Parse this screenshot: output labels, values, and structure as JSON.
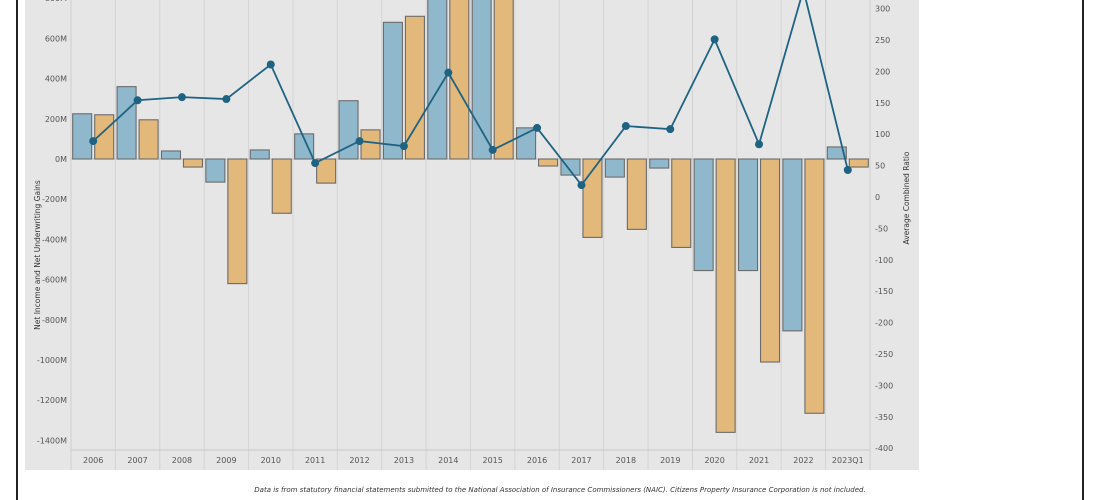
{
  "chart_data": {
    "type": "bar+line",
    "title": "",
    "categories": [
      "2006",
      "2007",
      "2008",
      "2009",
      "2010",
      "2011",
      "2012",
      "2013",
      "2014",
      "2015",
      "2016",
      "2017",
      "2018",
      "2019",
      "2020",
      "2021",
      "2022",
      "2023Q1"
    ],
    "series": [
      {
        "name": "Net Income",
        "type": "bar",
        "axis": "left",
        "color": "#8fb8cc",
        "values": [
          225,
          360,
          40,
          -115,
          45,
          125,
          290,
          680,
          850,
          850,
          155,
          -80,
          -90,
          -45,
          -555,
          -555,
          -855,
          60
        ]
      },
      {
        "name": "Net Underwriting Gains",
        "type": "bar",
        "axis": "left",
        "color": "#e2b87b",
        "values": [
          220,
          195,
          -40,
          -620,
          -270,
          -120,
          145,
          710,
          850,
          850,
          -35,
          -390,
          -350,
          -440,
          -1360,
          -1010,
          -1265,
          -40
        ]
      },
      {
        "name": "Average Combined Ratio",
        "type": "line",
        "axis": "right",
        "color": "#1f6383",
        "values": [
          89,
          154,
          159,
          156,
          211,
          54,
          89,
          81,
          198,
          75,
          110,
          19,
          113,
          108,
          251,
          84,
          330,
          43
        ]
      }
    ],
    "ylabel": "Net Income and Net Underwriting Gains",
    "ylabel_right": "Average Combined Ratio",
    "ylim": [
      -1450,
      810
    ],
    "ylim_right": [
      -410,
      315
    ],
    "yticks": [
      800,
      600,
      400,
      200,
      0,
      -200,
      -400,
      -600,
      -800,
      -1000,
      -1200,
      -1400
    ],
    "ytick_labels": [
      "800M",
      "600M",
      "400M",
      "200M",
      "0M",
      "-200M",
      "-400M",
      "-600M",
      "-800M",
      "-1000M",
      "-1200M",
      "-1400M"
    ],
    "yticks_right": [
      300,
      250,
      200,
      150,
      100,
      50,
      0,
      -50,
      -100,
      -150,
      -200,
      -250,
      -300,
      -350,
      -400
    ],
    "grid": true,
    "legend": "none"
  },
  "footer": "Data is from statutory financial statements submitted to the National Association of Insurance Commissioners (NAIC). Citizens Property Insurance Corporation is not included."
}
